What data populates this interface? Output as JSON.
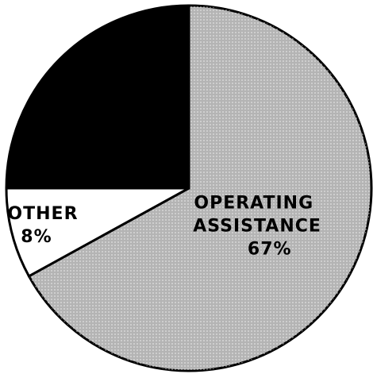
{
  "chart_data": {
    "type": "pie",
    "categories": [
      "OPERATING ASSISTANCE",
      "OTHER",
      null
    ],
    "values": [
      67,
      8,
      25
    ],
    "value_labels": [
      "67%",
      "8%",
      null
    ],
    "colors": [
      "#b4b4b4",
      "#ffffff",
      "#000000"
    ]
  }
}
